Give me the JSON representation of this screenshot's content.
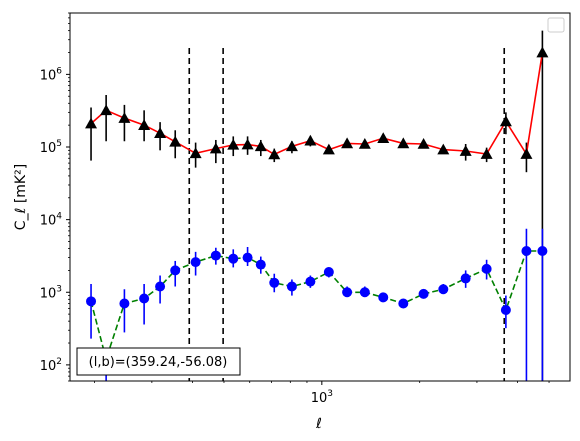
{
  "chart_data": {
    "type": "scatter",
    "xlabel": "ℓ",
    "ylabel": "C_ℓ  [mK²]",
    "x_scale": "log",
    "y_scale": "log",
    "xlim": [
      168,
      5800
    ],
    "ylim": [
      60,
      7000000
    ],
    "x_tick_labels": [
      {
        "value": 1000,
        "label": "10^3"
      }
    ],
    "y_tick_labels": [
      {
        "value": 100,
        "label": "10^2"
      },
      {
        "value": 1000,
        "label": "10^3"
      },
      {
        "value": 10000,
        "label": "10^4"
      },
      {
        "value": 100000,
        "label": "10^5"
      },
      {
        "value": 1000000,
        "label": "10^6"
      }
    ],
    "vlines": [
      391,
      497,
      3640
    ],
    "annotation": "(l,b)=(359.24,-56.08)",
    "legend": {
      "placement": "top-right",
      "entries": []
    },
    "series": [
      {
        "color": "#ff0000",
        "marker": "triangle",
        "marker_color": "#000000",
        "errorbar_color": "#000000",
        "line_style": "solid",
        "points": [
          {
            "x": 195,
            "y": 210000,
            "lo": 65000,
            "hi": 350000
          },
          {
            "x": 217,
            "y": 320000,
            "lo": 120000,
            "hi": 520000
          },
          {
            "x": 247,
            "y": 250000,
            "lo": 120000,
            "hi": 380000
          },
          {
            "x": 284,
            "y": 200000,
            "lo": 120000,
            "hi": 320000
          },
          {
            "x": 318,
            "y": 155000,
            "lo": 90000,
            "hi": 220000
          },
          {
            "x": 354,
            "y": 118000,
            "lo": 70000,
            "hi": 170000
          },
          {
            "x": 409,
            "y": 82000,
            "lo": 52000,
            "hi": 115000
          },
          {
            "x": 472,
            "y": 95000,
            "lo": 60000,
            "hi": 125000
          },
          {
            "x": 534,
            "y": 107000,
            "lo": 75000,
            "hi": 140000
          },
          {
            "x": 591,
            "y": 108000,
            "lo": 78000,
            "hi": 140000
          },
          {
            "x": 649,
            "y": 102000,
            "lo": 75000,
            "hi": 125000
          },
          {
            "x": 714,
            "y": 79000,
            "lo": 62000,
            "hi": 95000
          },
          {
            "x": 809,
            "y": 102000,
            "lo": 82000,
            "hi": 120000
          },
          {
            "x": 922,
            "y": 122000,
            "lo": 102000,
            "hi": 142000
          },
          {
            "x": 1051,
            "y": 92000,
            "lo": 80000,
            "hi": 106000
          },
          {
            "x": 1196,
            "y": 112000,
            "lo": 100000,
            "hi": 124000
          },
          {
            "x": 1356,
            "y": 110000,
            "lo": 98000,
            "hi": 120000
          },
          {
            "x": 1545,
            "y": 132000,
            "lo": 118000,
            "hi": 146000
          },
          {
            "x": 1781,
            "y": 112000,
            "lo": 100000,
            "hi": 124000
          },
          {
            "x": 2056,
            "y": 110000,
            "lo": 98000,
            "hi": 122000
          },
          {
            "x": 2364,
            "y": 92000,
            "lo": 82000,
            "hi": 102000
          },
          {
            "x": 2770,
            "y": 88000,
            "lo": 65000,
            "hi": 110000
          },
          {
            "x": 3213,
            "y": 80000,
            "lo": 62000,
            "hi": 98000
          },
          {
            "x": 3683,
            "y": 225000,
            "lo": 150000,
            "hi": 300000
          },
          {
            "x": 4260,
            "y": 80000,
            "lo": 45000,
            "hi": 115000
          },
          {
            "x": 4770,
            "y": 2000000,
            "lo": 60,
            "hi": 4000000
          }
        ]
      },
      {
        "color": "#008000",
        "marker": "circle",
        "marker_color": "#0000ff",
        "errorbar_color": "#0000ff",
        "line_style": "dashed",
        "points": [
          {
            "x": 195,
            "y": 750,
            "lo": 230,
            "hi": 1300
          },
          {
            "x": 217,
            "y": 120,
            "lo": 60,
            "hi": 120
          },
          {
            "x": 247,
            "y": 700,
            "lo": 280,
            "hi": 1100
          },
          {
            "x": 284,
            "y": 820,
            "lo": 360,
            "hi": 1300
          },
          {
            "x": 318,
            "y": 1200,
            "lo": 700,
            "hi": 1700
          },
          {
            "x": 354,
            "y": 2000,
            "lo": 1200,
            "hi": 2700
          },
          {
            "x": 409,
            "y": 2600,
            "lo": 1700,
            "hi": 3600
          },
          {
            "x": 472,
            "y": 3200,
            "lo": 2400,
            "hi": 4100
          },
          {
            "x": 534,
            "y": 2900,
            "lo": 2200,
            "hi": 3900
          },
          {
            "x": 591,
            "y": 3000,
            "lo": 2300,
            "hi": 4200
          },
          {
            "x": 649,
            "y": 2400,
            "lo": 1800,
            "hi": 3100
          },
          {
            "x": 714,
            "y": 1350,
            "lo": 1000,
            "hi": 1800
          },
          {
            "x": 809,
            "y": 1200,
            "lo": 900,
            "hi": 1500
          },
          {
            "x": 922,
            "y": 1400,
            "lo": 1150,
            "hi": 1700
          },
          {
            "x": 1051,
            "y": 1900,
            "lo": 1600,
            "hi": 2200
          },
          {
            "x": 1196,
            "y": 1000,
            "lo": 860,
            "hi": 1200
          },
          {
            "x": 1356,
            "y": 1000,
            "lo": 860,
            "hi": 1200
          },
          {
            "x": 1545,
            "y": 850,
            "lo": 740,
            "hi": 980
          },
          {
            "x": 1781,
            "y": 700,
            "lo": 620,
            "hi": 780
          },
          {
            "x": 2056,
            "y": 950,
            "lo": 860,
            "hi": 1050
          },
          {
            "x": 2364,
            "y": 1100,
            "lo": 950,
            "hi": 1300
          },
          {
            "x": 2770,
            "y": 1550,
            "lo": 1150,
            "hi": 2000
          },
          {
            "x": 3213,
            "y": 2100,
            "lo": 1500,
            "hi": 2800
          },
          {
            "x": 3683,
            "y": 570,
            "lo": 320,
            "hi": 900
          },
          {
            "x": 4260,
            "y": 3700,
            "lo": 60,
            "hi": 7500
          },
          {
            "x": 4770,
            "y": 3700,
            "lo": 60,
            "hi": 7500
          }
        ]
      }
    ]
  }
}
